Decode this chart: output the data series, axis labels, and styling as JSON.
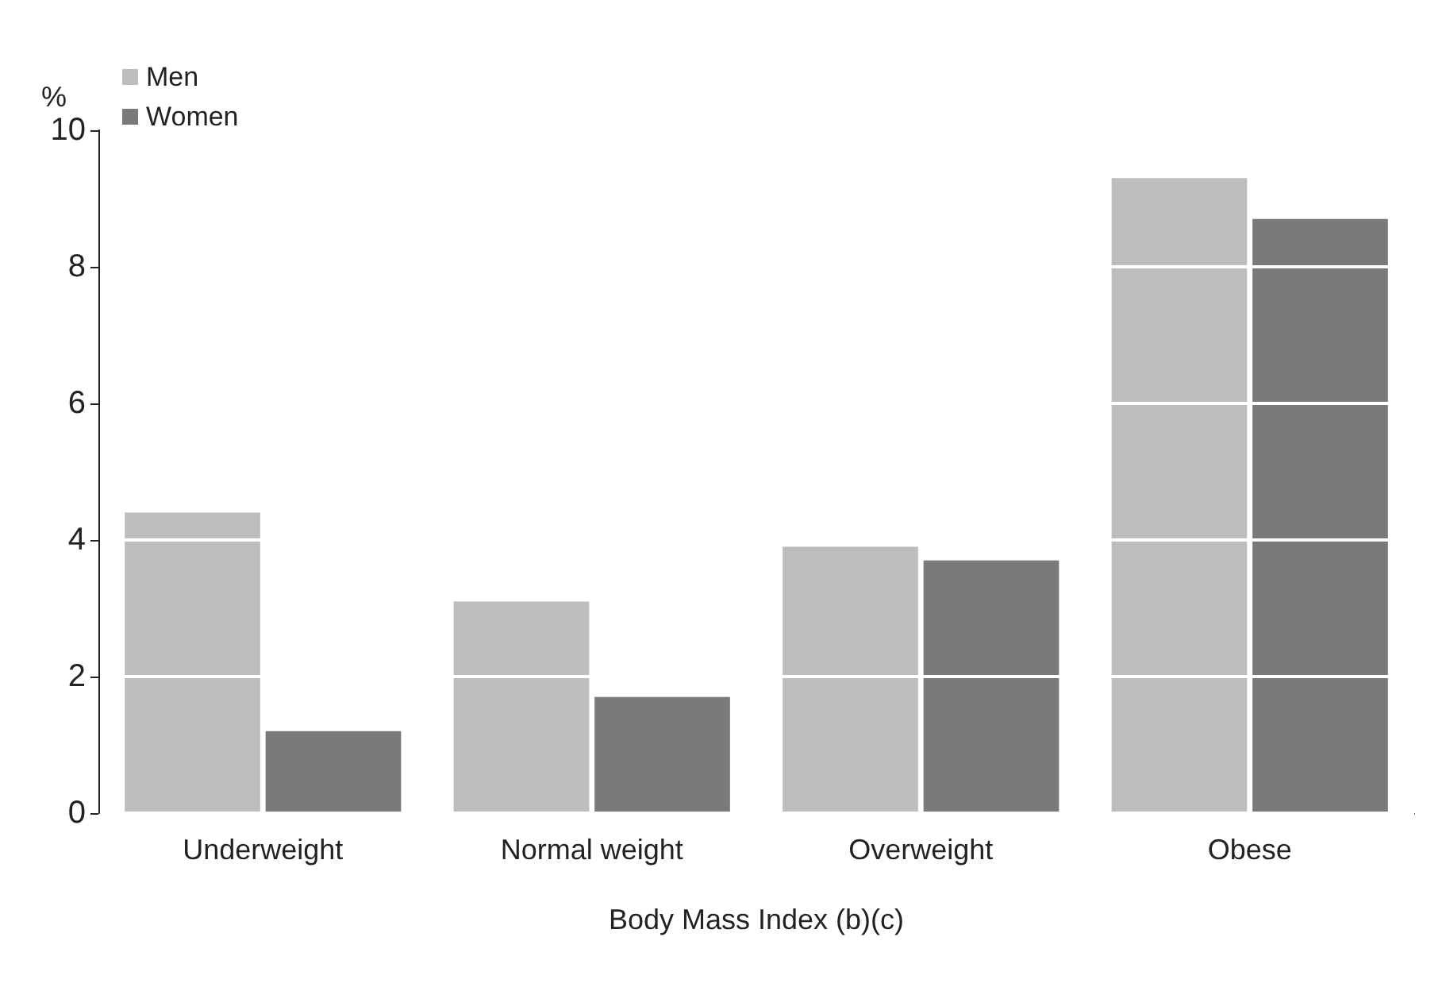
{
  "chart_data": {
    "type": "bar",
    "xlabel": "Body Mass Index (b)(c)",
    "ylabel": "%",
    "categories": [
      "Underweight",
      "Normal weight",
      "Overweight",
      "Obese"
    ],
    "series": [
      {
        "name": "Men",
        "color": "#bdbdbd",
        "values": [
          4.4,
          3.1,
          3.9,
          9.3
        ]
      },
      {
        "name": "Women",
        "color": "#7a7a7a",
        "values": [
          1.2,
          1.7,
          3.7,
          8.7
        ]
      }
    ],
    "ylim": [
      0,
      10
    ],
    "yticks": [
      0,
      2,
      4,
      6,
      8,
      10
    ],
    "grid": "y",
    "legend": "top left"
  }
}
